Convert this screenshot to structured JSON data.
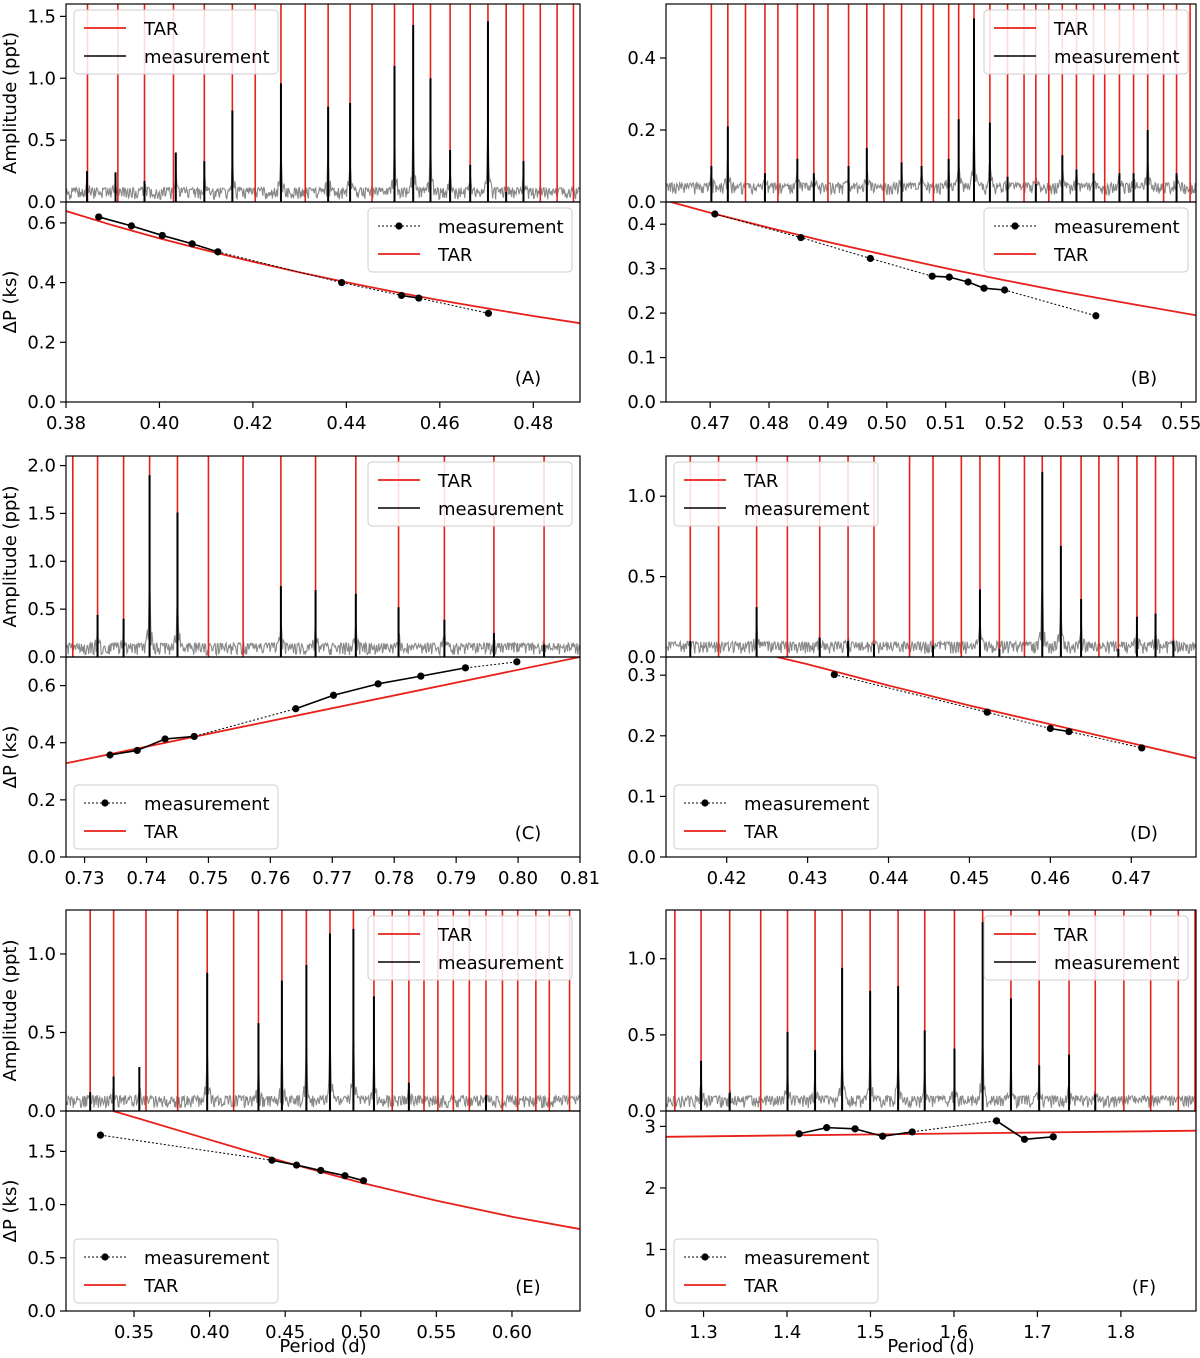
{
  "figure": {
    "shared": {
      "amp_ylabel": "Amplitude (ppt)",
      "dp_ylabel": "ΔP (ks)",
      "xlabel": "Period (d)",
      "legend_tar": "TAR",
      "legend_measurement": "measurement"
    }
  },
  "chart_data": [
    {
      "panel": "(A)",
      "type": "line",
      "amplitude": {
        "ylim": [
          0,
          1.6
        ],
        "yticks": [
          0.0,
          0.5,
          1.0,
          1.5
        ],
        "legend_position": "top-left",
        "tar_mode_periods": [
          0.3846,
          0.3911,
          0.3968,
          0.403,
          0.4096,
          0.4156,
          0.4205,
          0.426,
          0.4312,
          0.4361,
          0.4408,
          0.4455,
          0.4503,
          0.4543,
          0.458,
          0.4622,
          0.4665,
          0.4703,
          0.4742,
          0.4779,
          0.4815,
          0.4851,
          0.4886
        ],
        "measured_peaks": [
          [
            0.3845,
            0.25
          ],
          [
            0.3906,
            0.24
          ],
          [
            0.3968,
            0.17
          ],
          [
            0.4035,
            0.4
          ],
          [
            0.4096,
            0.33
          ],
          [
            0.4156,
            0.74
          ],
          [
            0.426,
            0.96
          ],
          [
            0.4361,
            0.77
          ],
          [
            0.4408,
            0.8
          ],
          [
            0.4503,
            1.1
          ],
          [
            0.4543,
            1.43
          ],
          [
            0.458,
            1.0
          ],
          [
            0.4622,
            0.42
          ],
          [
            0.4665,
            0.3
          ],
          [
            0.4703,
            1.46
          ],
          [
            0.4742,
            0.08
          ],
          [
            0.4779,
            0.33
          ]
        ]
      },
      "spacing": {
        "xlim": [
          0.38,
          0.49
        ],
        "ylim": [
          0.0,
          0.67
        ],
        "xticks": [
          0.38,
          0.4,
          0.42,
          0.44,
          0.46,
          0.48
        ],
        "yticks": [
          0.0,
          0.2,
          0.4,
          0.6
        ],
        "legend_position": "top-right",
        "measurement": {
          "x": [
            0.387,
            0.394,
            0.4006,
            0.407,
            0.4125,
            0.439,
            0.4518,
            0.4555,
            0.4704
          ],
          "y": [
            0.62,
            0.59,
            0.558,
            0.53,
            0.503,
            0.4,
            0.357,
            0.348,
            0.297
          ]
        },
        "tar_line": {
          "x": [
            0.38,
            0.39,
            0.4,
            0.41,
            0.42,
            0.43,
            0.44,
            0.45,
            0.46,
            0.47,
            0.48,
            0.49
          ],
          "y": [
            0.64,
            0.592,
            0.548,
            0.508,
            0.47,
            0.434,
            0.401,
            0.37,
            0.341,
            0.314,
            0.288,
            0.264
          ]
        }
      }
    },
    {
      "panel": "(B)",
      "type": "line",
      "amplitude": {
        "ylim": [
          0,
          0.55
        ],
        "yticks": [
          0.0,
          0.2,
          0.4
        ],
        "legend_position": "top-right",
        "tar_mode_periods": [
          0.4702,
          0.473,
          0.476,
          0.4793,
          0.4815,
          0.4848,
          0.4876,
          0.49,
          0.4935,
          0.4966,
          0.4995,
          0.5025,
          0.5059,
          0.5079,
          0.5105,
          0.5122,
          0.5148,
          0.5175,
          0.5205,
          0.5233,
          0.5253,
          0.5275,
          0.5298,
          0.5322,
          0.5351,
          0.537,
          0.5395,
          0.5419,
          0.5443,
          0.547,
          0.5492,
          0.5515,
          0.554
        ],
        "measured_peaks": [
          [
            0.4702,
            0.1
          ],
          [
            0.473,
            0.21
          ],
          [
            0.4793,
            0.08
          ],
          [
            0.4848,
            0.12
          ],
          [
            0.4876,
            0.08
          ],
          [
            0.4935,
            0.1
          ],
          [
            0.4966,
            0.15
          ],
          [
            0.5025,
            0.11
          ],
          [
            0.5059,
            0.1
          ],
          [
            0.5105,
            0.12
          ],
          [
            0.5122,
            0.23
          ],
          [
            0.5148,
            0.51
          ],
          [
            0.5175,
            0.22
          ],
          [
            0.5205,
            0.07
          ],
          [
            0.5253,
            0.05
          ],
          [
            0.5298,
            0.13
          ],
          [
            0.5322,
            0.09
          ],
          [
            0.5351,
            0.08
          ],
          [
            0.5395,
            0.08
          ],
          [
            0.5419,
            0.08
          ],
          [
            0.5443,
            0.2
          ],
          [
            0.5492,
            0.08
          ]
        ]
      },
      "spacing": {
        "xlim": [
          0.4625,
          0.5525
        ],
        "ylim": [
          0.0,
          0.45
        ],
        "xticks": [
          0.47,
          0.48,
          0.49,
          0.5,
          0.51,
          0.52,
          0.53,
          0.54,
          0.55
        ],
        "yticks": [
          0.0,
          0.1,
          0.2,
          0.3,
          0.4
        ],
        "legend_position": "top-right",
        "measurement": {
          "x": [
            0.4708,
            0.4854,
            0.4972,
            0.5077,
            0.5106,
            0.5138,
            0.5165,
            0.52,
            0.5355
          ],
          "y": [
            0.423,
            0.37,
            0.323,
            0.283,
            0.281,
            0.27,
            0.256,
            0.252,
            0.194
          ]
        },
        "tar_line": {
          "x": [
            0.4625,
            0.47,
            0.48,
            0.49,
            0.5,
            0.51,
            0.52,
            0.53,
            0.54,
            0.5525
          ],
          "y": [
            0.453,
            0.426,
            0.392,
            0.36,
            0.33,
            0.301,
            0.274,
            0.248,
            0.224,
            0.195
          ]
        }
      }
    },
    {
      "panel": "(C)",
      "type": "line",
      "amplitude": {
        "ylim": [
          0,
          2.1
        ],
        "yticks": [
          0.0,
          0.5,
          1.0,
          1.5,
          2.0
        ],
        "legend_position": "top-right",
        "tar_mode_periods": [
          0.7281,
          0.7321,
          0.7363,
          0.7405,
          0.745,
          0.75,
          0.7556,
          0.7617,
          0.7673,
          0.7738,
          0.7807,
          0.7881,
          0.7961,
          0.8042
        ],
        "measured_peaks": [
          [
            0.7321,
            0.44
          ],
          [
            0.7363,
            0.4
          ],
          [
            0.7405,
            1.9
          ],
          [
            0.745,
            1.51
          ],
          [
            0.7617,
            0.74
          ],
          [
            0.7673,
            0.7
          ],
          [
            0.7738,
            0.66
          ],
          [
            0.7807,
            0.52
          ],
          [
            0.7881,
            0.39
          ],
          [
            0.7961,
            0.25
          ],
          [
            0.8042,
            0.13
          ]
        ]
      },
      "spacing": {
        "xlim": [
          0.727,
          0.81
        ],
        "ylim": [
          0.0,
          0.7
        ],
        "xticks": [
          0.73,
          0.74,
          0.75,
          0.76,
          0.77,
          0.78,
          0.79,
          0.8,
          0.81
        ],
        "yticks": [
          0.0,
          0.2,
          0.4,
          0.6
        ],
        "legend_position": "bottom-left",
        "measurement": {
          "x": [
            0.7341,
            0.7385,
            0.743,
            0.7477,
            0.7641,
            0.7702,
            0.7774,
            0.7843,
            0.7915,
            0.7998
          ],
          "y": [
            0.357,
            0.373,
            0.413,
            0.422,
            0.519,
            0.566,
            0.606,
            0.633,
            0.662,
            0.683
          ]
        },
        "tar_line": {
          "x": [
            0.727,
            0.81
          ],
          "y": [
            0.328,
            0.7
          ]
        }
      }
    },
    {
      "panel": "(D)",
      "type": "line",
      "amplitude": {
        "ylim": [
          0,
          1.25
        ],
        "yticks": [
          0.0,
          0.5,
          1.0
        ],
        "legend_position": "top-left",
        "tar_mode_periods": [
          0.4155,
          0.419,
          0.4237,
          0.4275,
          0.4315,
          0.435,
          0.4382,
          0.4426,
          0.4455,
          0.449,
          0.4513,
          0.4537,
          0.4568,
          0.459,
          0.4613,
          0.4638,
          0.466,
          0.4684,
          0.4707,
          0.473,
          0.4752
        ],
        "measured_peaks": [
          [
            0.4155,
            0.1
          ],
          [
            0.4237,
            0.31
          ],
          [
            0.4315,
            0.12
          ],
          [
            0.435,
            0.1
          ],
          [
            0.4382,
            0.08
          ],
          [
            0.4455,
            0.07
          ],
          [
            0.4513,
            0.42
          ],
          [
            0.4537,
            0.05
          ],
          [
            0.459,
            1.15
          ],
          [
            0.4613,
            0.69
          ],
          [
            0.4638,
            0.36
          ],
          [
            0.4684,
            0.05
          ],
          [
            0.4707,
            0.25
          ],
          [
            0.473,
            0.27
          ],
          [
            0.4752,
            0.1
          ]
        ]
      },
      "spacing": {
        "xlim": [
          0.4125,
          0.478
        ],
        "ylim": [
          0.0,
          0.33
        ],
        "xticks": [
          0.42,
          0.43,
          0.44,
          0.45,
          0.46,
          0.47
        ],
        "yticks": [
          0.0,
          0.1,
          0.2,
          0.3
        ],
        "legend_position": "bottom-left",
        "measurement": {
          "x": [
            0.4333,
            0.4522,
            0.46,
            0.4623,
            0.4713
          ],
          "y": [
            0.301,
            0.239,
            0.212,
            0.207,
            0.18
          ]
        },
        "tar_line": {
          "x": [
            0.4262,
            0.43,
            0.44,
            0.45,
            0.46,
            0.47,
            0.478
          ],
          "y": [
            0.33,
            0.318,
            0.283,
            0.25,
            0.219,
            0.188,
            0.163
          ]
        }
      }
    },
    {
      "panel": "(E)",
      "type": "line",
      "amplitude": {
        "ylim": [
          0,
          1.28
        ],
        "yticks": [
          0.0,
          0.5,
          1.0
        ],
        "legend_position": "top-right",
        "tar_mode_periods": [
          0.321,
          0.3365,
          0.3579,
          0.3789,
          0.3984,
          0.4159,
          0.4323,
          0.4478,
          0.464,
          0.4796,
          0.4951,
          0.5087,
          0.5208,
          0.5318,
          0.5418,
          0.551,
          0.5612,
          0.5718,
          0.5828,
          0.5937,
          0.6038,
          0.6158,
          0.6247,
          0.6381
        ],
        "measured_peaks": [
          [
            0.321,
            0.12
          ],
          [
            0.3365,
            0.22
          ],
          [
            0.3535,
            0.28
          ],
          [
            0.3984,
            0.88
          ],
          [
            0.4323,
            0.56
          ],
          [
            0.4478,
            0.83
          ],
          [
            0.464,
            0.93
          ],
          [
            0.4796,
            1.13
          ],
          [
            0.4951,
            1.16
          ],
          [
            0.5087,
            0.73
          ],
          [
            0.5318,
            0.18
          ],
          [
            0.5828,
            0.1
          ]
        ]
      },
      "spacing": {
        "xlim": [
          0.305,
          0.645
        ],
        "ylim": [
          0.0,
          1.88
        ],
        "xticks": [
          0.35,
          0.4,
          0.45,
          0.5,
          0.55,
          0.6
        ],
        "yticks": [
          0.0,
          0.5,
          1.0,
          1.5
        ],
        "legend_position": "bottom-left",
        "measurement": {
          "x": [
            0.3278,
            0.4412,
            0.4575,
            0.4735,
            0.4895,
            0.5018
          ],
          "y": [
            1.653,
            1.417,
            1.372,
            1.321,
            1.272,
            1.225
          ]
        },
        "tar_line": {
          "x": [
            0.336,
            0.35,
            0.4,
            0.45,
            0.5,
            0.55,
            0.6,
            0.645
          ],
          "y": [
            1.88,
            1.823,
            1.61,
            1.4,
            1.207,
            1.038,
            0.886,
            0.77
          ]
        }
      }
    },
    {
      "panel": "(F)",
      "type": "line",
      "amplitude": {
        "ylim": [
          0,
          1.32
        ],
        "yticks": [
          0.0,
          0.5,
          1.0
        ],
        "legend_position": "top-right",
        "tar_mode_periods": [
          1.2656,
          1.297,
          1.3313,
          1.3685,
          1.4006,
          1.4336,
          1.466,
          1.4996,
          1.5331,
          1.565,
          1.6006,
          1.6344,
          1.6683,
          1.7021,
          1.7379,
          1.7693,
          1.8036,
          1.8357,
          1.8688,
          1.8888
        ],
        "measured_peaks": [
          [
            1.297,
            0.33
          ],
          [
            1.3313,
            0.12
          ],
          [
            1.4006,
            0.52
          ],
          [
            1.4336,
            0.4
          ],
          [
            1.466,
            0.94
          ],
          [
            1.4996,
            0.79
          ],
          [
            1.5331,
            0.82
          ],
          [
            1.565,
            0.53
          ],
          [
            1.6006,
            0.41
          ],
          [
            1.6344,
            1.24
          ],
          [
            1.6683,
            0.74
          ],
          [
            1.7021,
            0.3
          ],
          [
            1.7379,
            0.37
          ],
          [
            1.7693,
            0.11
          ]
        ]
      },
      "spacing": {
        "xlim": [
          1.255,
          1.89
        ],
        "ylim": [
          0.0,
          3.25
        ],
        "xticks": [
          1.3,
          1.4,
          1.5,
          1.6,
          1.7,
          1.8
        ],
        "yticks": [
          0,
          1,
          2,
          3
        ],
        "legend_position": "bottom-left",
        "measurement": {
          "x": [
            1.4145,
            1.4475,
            1.4815,
            1.5145,
            1.55,
            1.651,
            1.6845,
            1.719
          ],
          "y": [
            2.88,
            2.98,
            2.96,
            2.84,
            2.91,
            3.09,
            2.79,
            2.83
          ]
        },
        "tar_line": {
          "x": [
            1.255,
            1.89
          ],
          "y": [
            2.83,
            2.93
          ]
        }
      }
    }
  ]
}
